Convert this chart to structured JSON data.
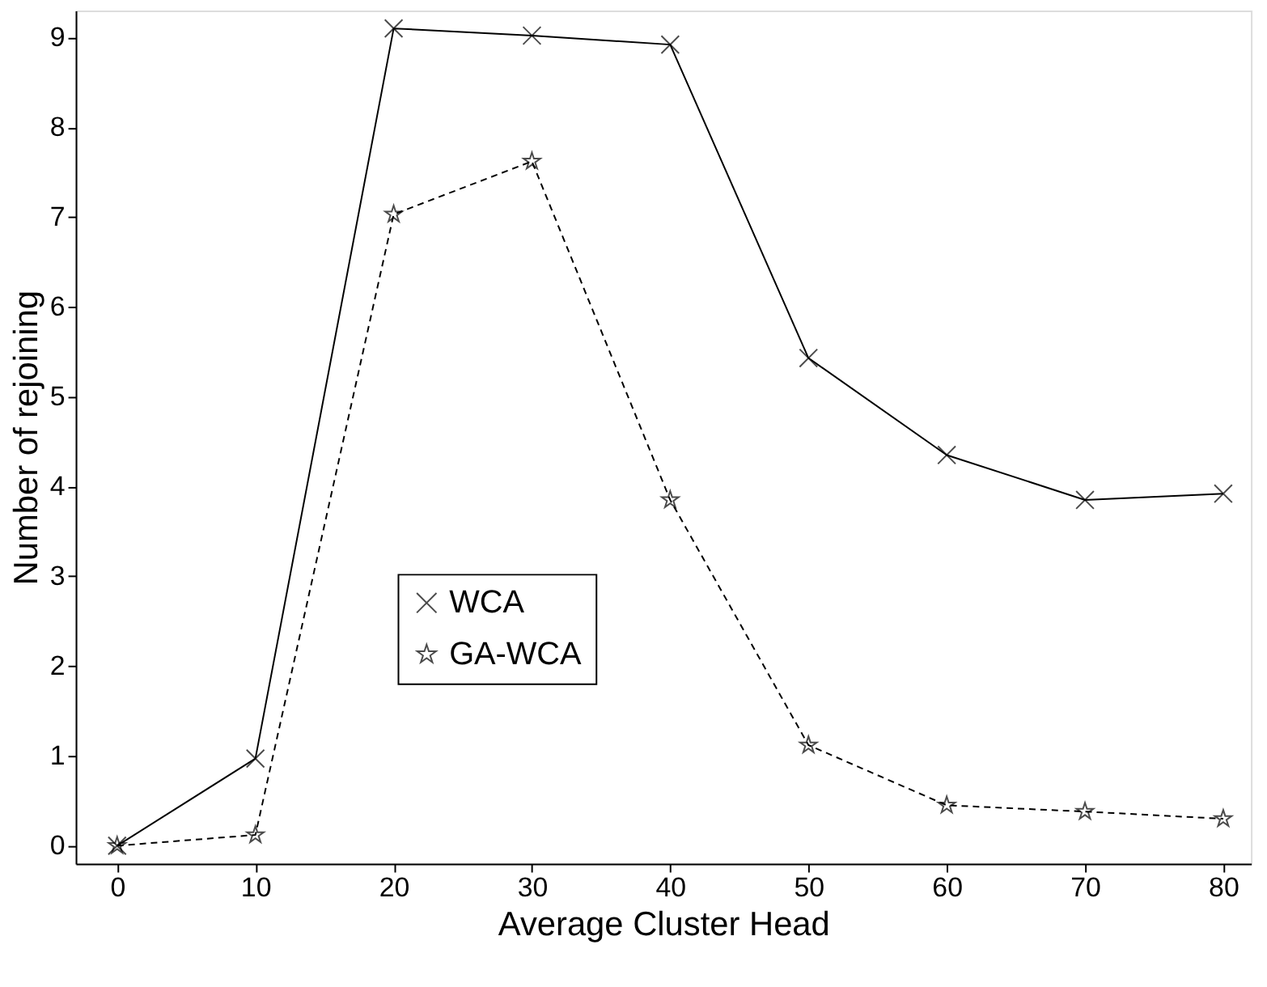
{
  "chart_data": {
    "type": "line",
    "xlabel": "Average Cluster Head",
    "ylabel": "Number of rejoining",
    "x": [
      0,
      10,
      20,
      30,
      40,
      50,
      60,
      70,
      80
    ],
    "series": [
      {
        "name": "WCA",
        "color": "#000000",
        "marker": "cross",
        "line_style": "solid",
        "values": [
          0,
          0.97,
          9.1,
          9.02,
          8.92,
          5.43,
          4.35,
          3.85,
          3.92
        ]
      },
      {
        "name": "GA-WCA",
        "color": "#000000",
        "marker": "star",
        "line_style": "dashed",
        "values": [
          0,
          0.12,
          7.03,
          7.62,
          3.85,
          1.12,
          0.45,
          0.38,
          0.3
        ]
      }
    ],
    "xlim": [
      -3,
      82
    ],
    "xticks": [
      0,
      10,
      20,
      30,
      40,
      50,
      60,
      70,
      80
    ],
    "ylim": [
      -0.2,
      9.3
    ],
    "yticks": [
      0,
      1,
      2,
      3,
      4,
      5,
      6,
      7,
      8,
      9
    ],
    "grid": false,
    "legend": "bottom left"
  }
}
